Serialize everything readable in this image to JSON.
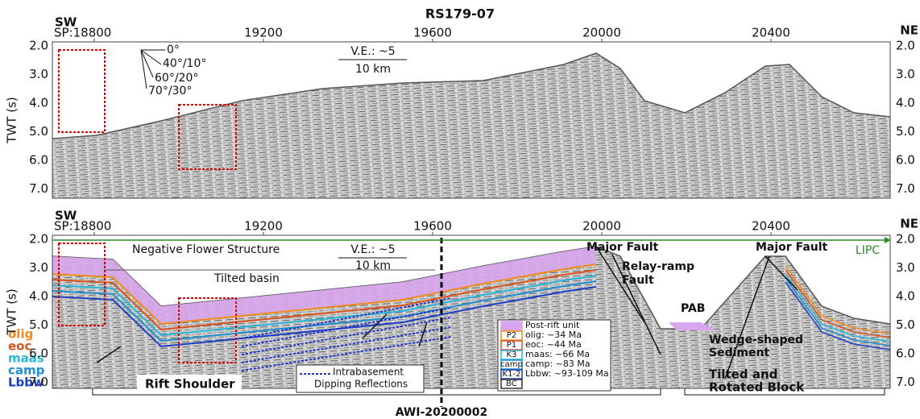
{
  "title": "RS179-07",
  "panels": [
    {
      "left": "SW",
      "right": "NE",
      "ylabel": "TWT (s)",
      "annotations": [
        "0°",
        "40°/10°",
        "60°/20°",
        "70°/30°",
        "V.E.: ~5",
        "10 km"
      ]
    },
    {
      "left": "SW",
      "right": "NE",
      "ylabel": "TWT (s)",
      "annotations": [
        "Negative Flower Structure",
        "V.E.: ~5",
        "10 km",
        "Tilted basin",
        "Major Fault",
        [
          "Relay-ramp",
          "Fault"
        ],
        "Major Fault",
        "LIPC",
        "PAB",
        [
          "Wedge-shaped",
          "Sediment"
        ],
        [
          "Tilted and",
          "Rotated Block"
        ],
        "Rift Shoulder",
        [
          "Intrabasement",
          "Dipping Reflections"
        ],
        "AWI-20200002"
      ]
    }
  ],
  "xticks": [
    "SP:18800",
    "19200",
    "19600",
    "20000",
    "20400"
  ],
  "yticks": [
    "2.0",
    "3.0",
    "4.0",
    "5.0",
    "6.0",
    "7.0"
  ],
  "horizons": [
    {
      "label": "olig",
      "color": "#f08a1c"
    },
    {
      "label": "eoc",
      "color": "#d9531e"
    },
    {
      "label": "maas",
      "color": "#29b6d9"
    },
    {
      "label": "camp",
      "color": "#1f8fd0"
    },
    {
      "label": "Lbbw",
      "color": "#1b3fc4"
    }
  ],
  "legend": [
    {
      "label": "Post-rift unit",
      "color": "#d7a6ec"
    },
    {
      "key": "P2",
      "label": "olig: ~34 Ma",
      "color": "#f08a1c"
    },
    {
      "key": "P1",
      "label": "eoc: ~44 Ma",
      "color": "#d9531e"
    },
    {
      "key": "K3",
      "label": "maas: ~66 Ma",
      "color": "#29b6d9"
    },
    {
      "key": "camp",
      "label": "camp: ~83 Ma",
      "color": "#1f8fd0"
    },
    {
      "key": "K1-2",
      "label": "Lbbw: ~93-109 Ma",
      "color": "#1b3fc4"
    },
    {
      "key": "BC"
    }
  ]
}
